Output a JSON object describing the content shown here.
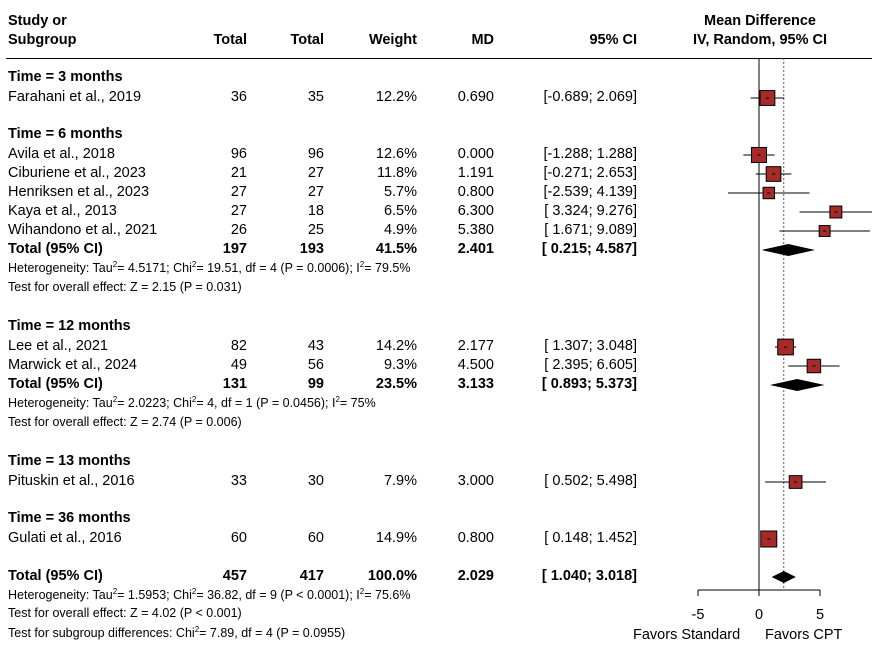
{
  "headers": {
    "study_line1": "Study or",
    "study_line2": "Subgroup",
    "total1": "Total",
    "total2": "Total",
    "weight": "Weight",
    "md": "MD",
    "ci": "95% CI",
    "plot_line1": "Mean Difference",
    "plot_line2": "IV, Random, 95% CI"
  },
  "groups": [
    {
      "label": "Time = 3 months",
      "studies": [
        {
          "name": "Farahani et al., 2019",
          "t1": "36",
          "t2": "35",
          "weight": "12.2%",
          "md": "0.690",
          "ci": "[-0.689; 2.069]"
        }
      ]
    },
    {
      "label": "Time = 6 months",
      "studies": [
        {
          "name": "Avila et al., 2018",
          "t1": "96",
          "t2": "96",
          "weight": "12.6%",
          "md": "0.000",
          "ci": "[-1.288; 1.288]"
        },
        {
          "name": "Ciburiene et al., 2023",
          "t1": "21",
          "t2": "27",
          "weight": "11.8%",
          "md": "1.191",
          "ci": "[-0.271; 2.653]"
        },
        {
          "name": "Henriksen et al., 2023",
          "t1": "27",
          "t2": "27",
          "weight": "5.7%",
          "md": "0.800",
          "ci": "[-2.539; 4.139]"
        },
        {
          "name": "Kaya et al., 2013",
          "t1": "27",
          "t2": "18",
          "weight": "6.5%",
          "md": "6.300",
          "ci": "[ 3.324; 9.276]"
        },
        {
          "name": "Wihandono et al., 2021",
          "t1": "26",
          "t2": "25",
          "weight": "4.9%",
          "md": "5.380",
          "ci": "[ 1.671; 9.089]"
        }
      ],
      "total": {
        "name": "Total (95% CI)",
        "t1": "197",
        "t2": "193",
        "weight": "41.5%",
        "md": "2.401",
        "ci": "[ 0.215; 4.587]"
      },
      "het": {
        "pre": "Heterogeneity: Tau",
        "tau2": "= 4.5171; Chi",
        "chi2": "= 19.51, df = 4 (P = 0.0006); I",
        "i2": "= 79.5%"
      },
      "effect": "Test for overall effect: Z = 2.15 (P = 0.031)"
    },
    {
      "label": "Time = 12 months",
      "studies": [
        {
          "name": "Lee et al., 2021",
          "t1": "82",
          "t2": "43",
          "weight": "14.2%",
          "md": "2.177",
          "ci": "[ 1.307; 3.048]"
        },
        {
          "name": "Marwick et al., 2024",
          "t1": "49",
          "t2": "56",
          "weight": "9.3%",
          "md": "4.500",
          "ci": "[ 2.395; 6.605]"
        }
      ],
      "total": {
        "name": "Total (95% CI)",
        "t1": "131",
        "t2": "99",
        "weight": "23.5%",
        "md": "3.133",
        "ci": "[ 0.893; 5.373]"
      },
      "het": {
        "pre": "Heterogeneity: Tau",
        "tau2": "= 2.0223; Chi",
        "chi2": "= 4, df = 1 (P = 0.0456); I",
        "i2": "= 75%"
      },
      "effect": "Test for overall effect: Z = 2.74 (P = 0.006)"
    },
    {
      "label": "Time = 13 months",
      "studies": [
        {
          "name": "Pituskin et al., 2016",
          "t1": "33",
          "t2": "30",
          "weight": "7.9%",
          "md": "3.000",
          "ci": "[ 0.502; 5.498]"
        }
      ]
    },
    {
      "label": "Time = 36 months",
      "studies": [
        {
          "name": "Gulati et al., 2016",
          "t1": "60",
          "t2": "60",
          "weight": "14.9%",
          "md": "0.800",
          "ci": "[ 0.148; 1.452]"
        }
      ]
    }
  ],
  "overall": {
    "total": {
      "name": "Total (95% CI)",
      "t1": "457",
      "t2": "417",
      "weight": "100.0%",
      "md": "2.029",
      "ci": "[ 1.040; 3.018]"
    },
    "het": {
      "pre": "Heterogeneity: Tau",
      "tau2": "= 1.5953; Chi",
      "chi2": "= 36.82, df = 9 (P < 0.0001); I",
      "i2": "= 75.6%"
    },
    "effect": "Test for overall effect: Z = 4.02 (P < 0.001)",
    "subgroup": "Test for subgroup differences: Chi",
    "subgroup_rest": "= 7.89, df = 4 (P = 0.0955)"
  },
  "axis": {
    "ticks": [
      "-5",
      "0",
      "5"
    ],
    "favors_left": "Favors Standard",
    "favors_right": "Favors CPT"
  },
  "chart_data": {
    "type": "forest",
    "xlim": [
      -5,
      5
    ],
    "xticks": [
      -5,
      0,
      5
    ],
    "overall_effect": 2.029,
    "square_color": "#a52a2a",
    "series": [
      {
        "name": "Farahani et al., 2019",
        "md": 0.69,
        "lo": -0.689,
        "hi": 2.069,
        "weight": 12.2
      },
      {
        "name": "Avila et al., 2018",
        "md": 0.0,
        "lo": -1.288,
        "hi": 1.288,
        "weight": 12.6
      },
      {
        "name": "Ciburiene et al., 2023",
        "md": 1.191,
        "lo": -0.271,
        "hi": 2.653,
        "weight": 11.8
      },
      {
        "name": "Henriksen et al., 2023",
        "md": 0.8,
        "lo": -2.539,
        "hi": 4.139,
        "weight": 5.7
      },
      {
        "name": "Kaya et al., 2013",
        "md": 6.3,
        "lo": 3.324,
        "hi": 9.276,
        "weight": 6.5
      },
      {
        "name": "Wihandono et al., 2021",
        "md": 5.38,
        "lo": 1.671,
        "hi": 9.089,
        "weight": 4.9
      },
      {
        "name": "Total (95% CI)",
        "md": 2.401,
        "lo": 0.215,
        "hi": 4.587,
        "diamond": true
      },
      {
        "name": "Lee et al., 2021",
        "md": 2.177,
        "lo": 1.307,
        "hi": 3.048,
        "weight": 14.2
      },
      {
        "name": "Marwick et al., 2024",
        "md": 4.5,
        "lo": 2.395,
        "hi": 6.605,
        "weight": 9.3
      },
      {
        "name": "Total (95% CI)",
        "md": 3.133,
        "lo": 0.893,
        "hi": 5.373,
        "diamond": true
      },
      {
        "name": "Pituskin et al., 2016",
        "md": 3.0,
        "lo": 0.502,
        "hi": 5.498,
        "weight": 7.9
      },
      {
        "name": "Gulati et al., 2016",
        "md": 0.8,
        "lo": 0.148,
        "hi": 1.452,
        "weight": 14.9
      },
      {
        "name": "Total (95% CI)",
        "md": 2.029,
        "lo": 1.04,
        "hi": 3.018,
        "diamond": true
      }
    ]
  }
}
